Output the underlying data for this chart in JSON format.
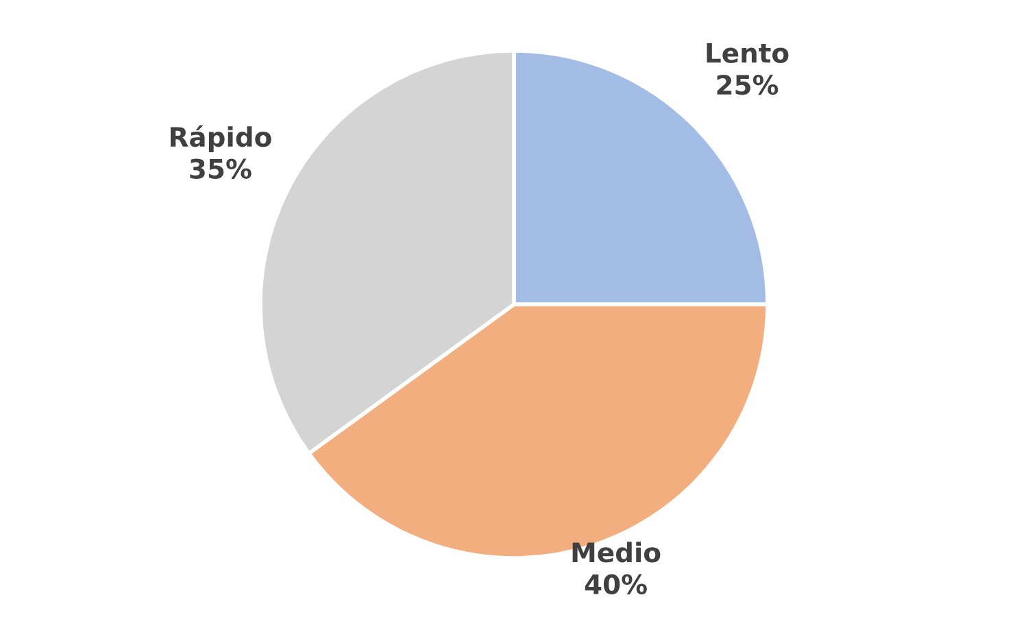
{
  "chart_data": {
    "type": "pie",
    "categories": [
      "Lento",
      "Medio",
      "Rápido"
    ],
    "values": [
      25,
      40,
      35
    ],
    "value_labels": [
      "25%",
      "40%",
      "35%"
    ],
    "colors": [
      "#a3bce6",
      "#f3ae80",
      "#d4d4d4"
    ],
    "legend": false
  }
}
